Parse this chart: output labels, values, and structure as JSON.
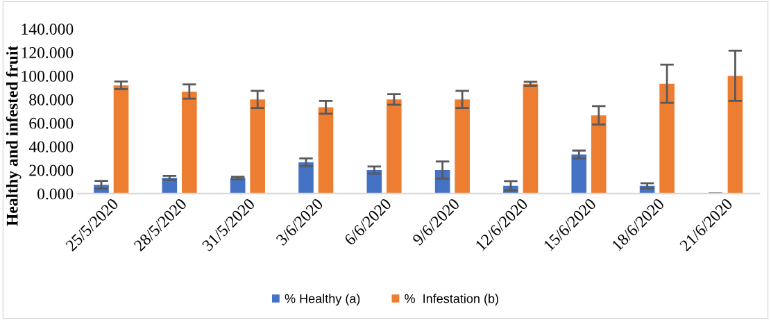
{
  "chart_data": {
    "type": "bar",
    "ylabel": "Healthy and infested fruit",
    "categories": [
      "25/5/2020",
      "28/5/2020",
      "31/5/2020",
      "3/6/2020",
      "6/6/2020",
      "9/6/2020",
      "12/6/2020",
      "15/6/2020",
      "18/6/2020",
      "21/6/2020"
    ],
    "series": [
      {
        "name": "% Healthy (a)",
        "color": "#4472c4",
        "values": [
          7.5,
          13.3,
          13.3,
          26.6,
          20,
          20,
          6.6,
          33.2,
          6.6,
          0
        ],
        "errors": [
          3.3,
          1.8,
          1,
          3.3,
          3,
          7.3,
          4,
          3.3,
          2.2,
          null
        ]
      },
      {
        "name": "%  Infestation (b)",
        "color": "#ed7d31",
        "values": [
          92,
          86.7,
          80,
          73.3,
          80,
          80,
          93.3,
          66.5,
          93.3,
          100
        ],
        "errors": [
          3.3,
          6,
          7.3,
          5.5,
          4.5,
          7.3,
          1.7,
          7.8,
          16.2,
          21.3
        ]
      }
    ],
    "ylim": [
      0,
      140
    ],
    "yticks": [
      {
        "value": 0,
        "label": "0.000"
      },
      {
        "value": 20,
        "label": "20.000"
      },
      {
        "value": 40,
        "label": "40.000"
      },
      {
        "value": 60,
        "label": "60.000"
      },
      {
        "value": 80,
        "label": "80.000"
      },
      {
        "value": 100,
        "label": "100.000"
      },
      {
        "value": 120,
        "label": "120.000"
      },
      {
        "value": 140,
        "label": "140.000"
      }
    ],
    "grid": false,
    "legend": "bottom"
  }
}
